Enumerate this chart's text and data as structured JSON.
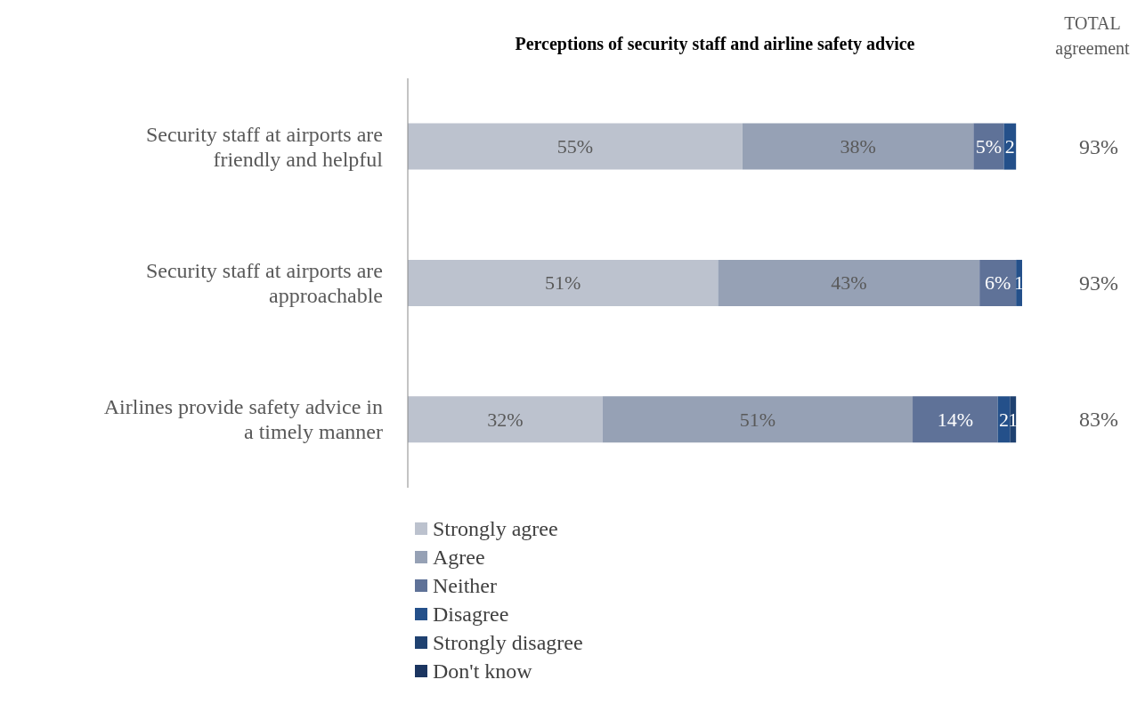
{
  "chart_data": {
    "type": "bar",
    "orientation": "horizontal",
    "stacked": true,
    "title": "Perceptions of security staff and airline safety advice",
    "categories": [
      "Security staff at airports are friendly and helpful",
      "Security staff at airports are approachable",
      "Airlines provide safety advice in a timely manner"
    ],
    "series": [
      {
        "name": "Strongly agree",
        "color": "#bcc2ce",
        "values": [
          55,
          51,
          32
        ],
        "value_labels": [
          "55%",
          "51%",
          "32%"
        ]
      },
      {
        "name": "Agree",
        "color": "#96a1b5",
        "values": [
          38,
          43,
          51
        ],
        "value_labels": [
          "38%",
          "43%",
          "51%"
        ]
      },
      {
        "name": "Neither",
        "color": "#5f7298",
        "values": [
          5,
          6,
          14
        ],
        "value_labels": [
          "5%",
          "6%",
          "14%"
        ]
      },
      {
        "name": "Disagree",
        "color": "#24508a",
        "values": [
          2,
          1,
          2
        ],
        "value_labels": [
          "2",
          "1",
          "2"
        ]
      },
      {
        "name": "Strongly disagree",
        "color": "#1f4170",
        "values": [
          0,
          0,
          1
        ],
        "value_labels": [
          null,
          null,
          "1"
        ]
      },
      {
        "name": "Don't know",
        "color": "#1b3560",
        "values": [
          0,
          0,
          0
        ],
        "value_labels": [
          null,
          null,
          null
        ]
      }
    ],
    "annotations": [
      "TOTAL agreement",
      "93%",
      "93%",
      "83%"
    ],
    "legend": "bottom",
    "grid": false
  }
}
